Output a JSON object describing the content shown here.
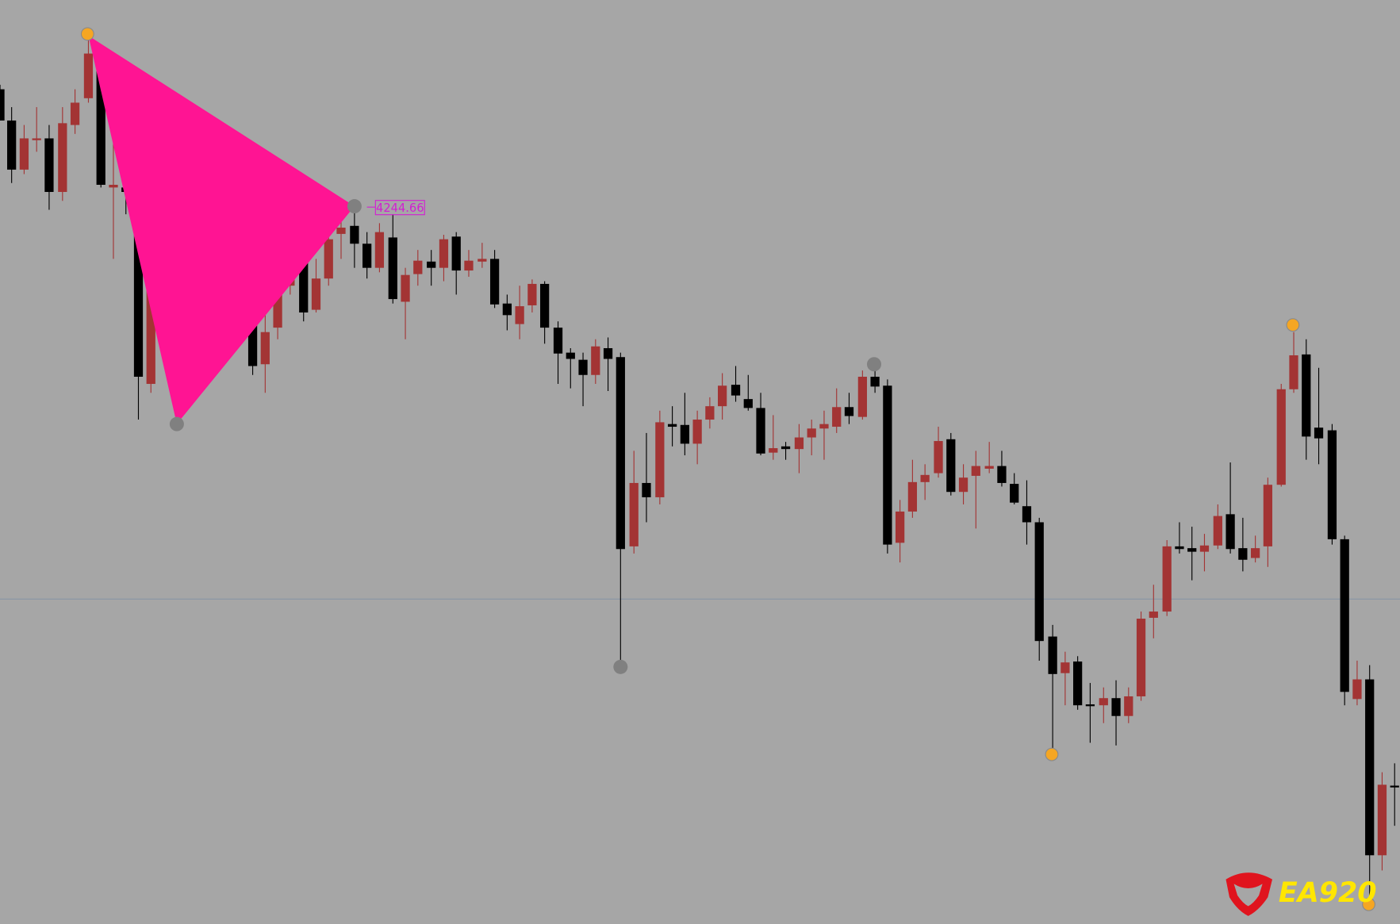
{
  "price_label": "4244.66",
  "logo": {
    "text": "EA920"
  }
}
